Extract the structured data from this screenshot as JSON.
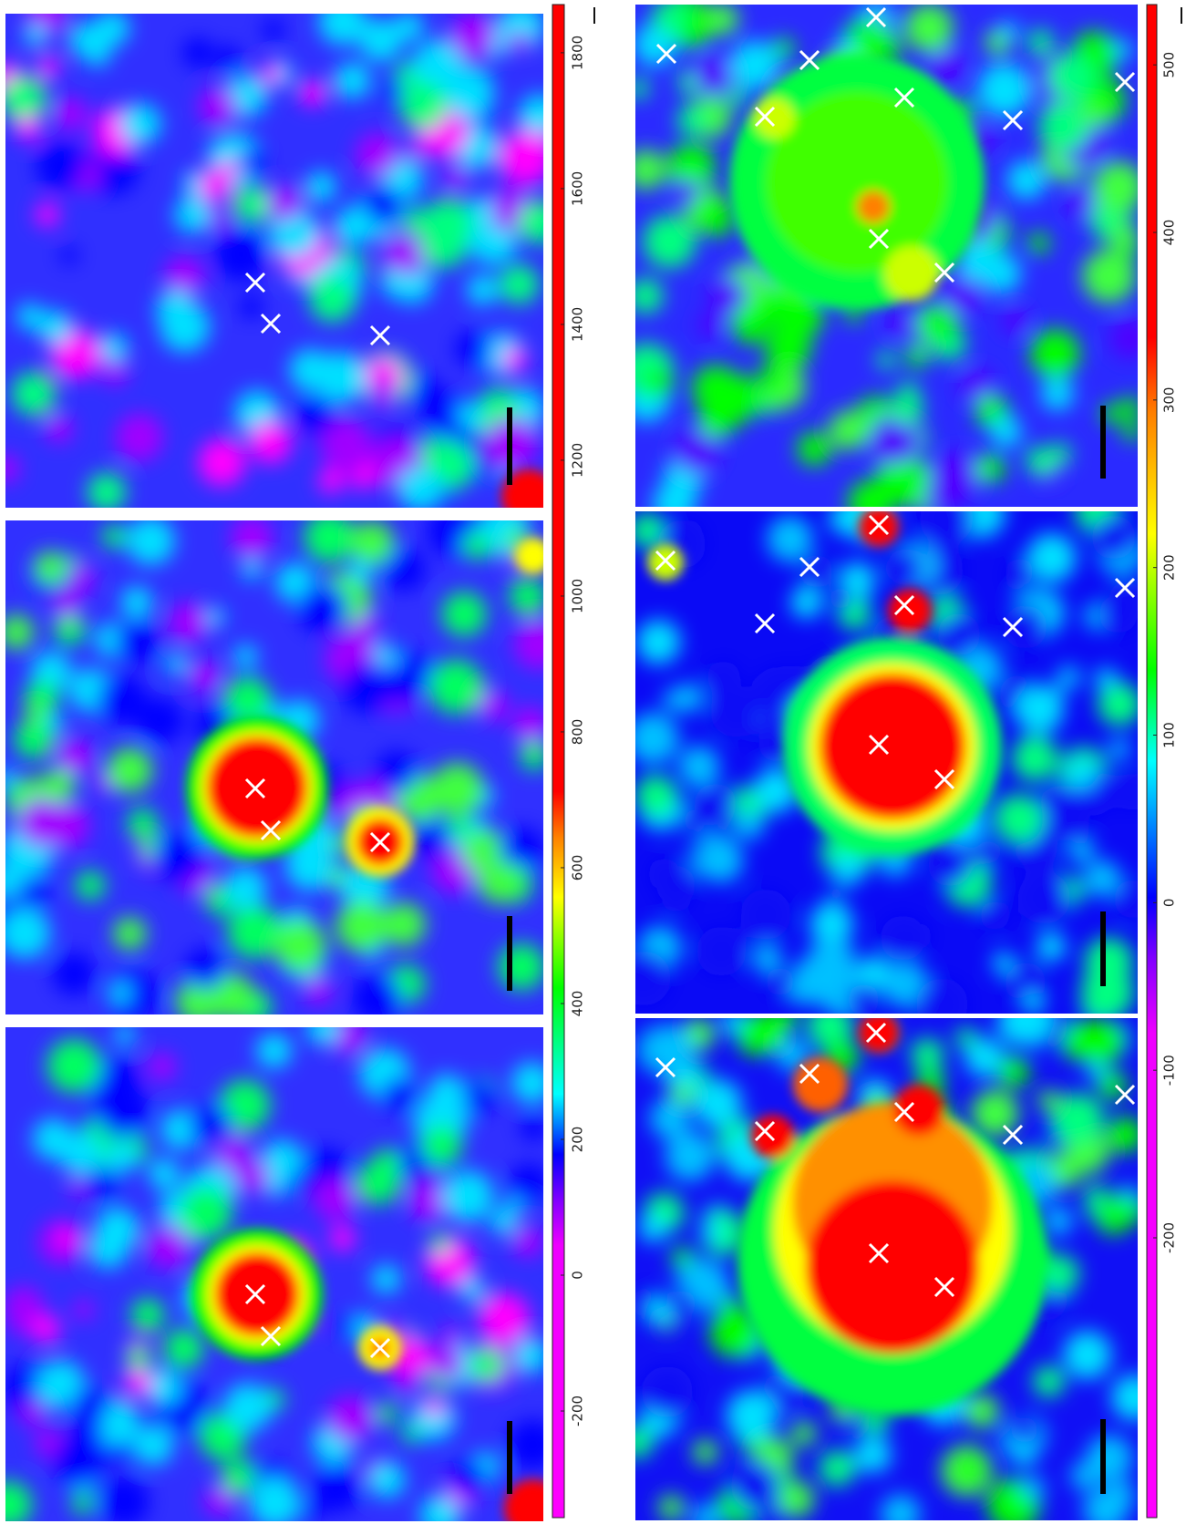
{
  "colorbars": [
    {
      "lim": [
        -357,
        1871
      ],
      "ticks": [
        -200,
        0,
        200,
        400,
        600,
        800,
        1000,
        1200,
        1400,
        1600,
        1800
      ]
    },
    {
      "lim": [
        -367,
        536
      ],
      "ticks": [
        -200,
        -100,
        0,
        100,
        200,
        300,
        400,
        500
      ]
    }
  ]
}
